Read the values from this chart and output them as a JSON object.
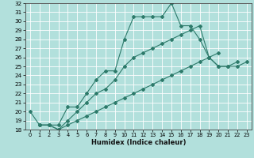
{
  "xlabel": "Humidex (Indice chaleur)",
  "background_color": "#b2e0dc",
  "grid_color": "#ffffff",
  "line_color": "#2d7a6a",
  "xlim": [
    -0.5,
    23.5
  ],
  "ylim": [
    18,
    32
  ],
  "xticks": [
    0,
    1,
    2,
    3,
    4,
    5,
    6,
    7,
    8,
    9,
    10,
    11,
    12,
    13,
    14,
    15,
    16,
    17,
    18,
    19,
    20,
    21,
    22,
    23
  ],
  "yticks": [
    18,
    19,
    20,
    21,
    22,
    23,
    24,
    25,
    26,
    27,
    28,
    29,
    30,
    31,
    32
  ],
  "series": [
    {
      "x": [
        0,
        1,
        2,
        3,
        4,
        5,
        6,
        7,
        8,
        9,
        10,
        11,
        12,
        13,
        14,
        15,
        16,
        17,
        18,
        19,
        20,
        21,
        22
      ],
      "y": [
        20,
        18.5,
        18.5,
        18.5,
        20.5,
        20.5,
        22,
        23.5,
        24.5,
        24.5,
        28,
        30.5,
        30.5,
        30.5,
        30.5,
        32,
        29.5,
        29.5,
        28,
        26,
        25,
        25,
        25.5
      ]
    },
    {
      "x": [
        1,
        2,
        3,
        4,
        5,
        6,
        7,
        8,
        9,
        10,
        11,
        12,
        13,
        14,
        15,
        16,
        17,
        18,
        19,
        20,
        21,
        22,
        23
      ],
      "y": [
        18.5,
        18.5,
        18,
        19,
        20,
        21,
        22,
        22.5,
        23.5,
        25,
        26,
        26.5,
        27,
        27.5,
        28,
        28.5,
        29,
        29.5,
        26,
        25,
        25,
        25,
        25.5
      ]
    },
    {
      "x": [
        1,
        2,
        3,
        4,
        5,
        6,
        7,
        8,
        9,
        10,
        11,
        12,
        13,
        14,
        15,
        16,
        17,
        18,
        19,
        20
      ],
      "y": [
        18.5,
        18.5,
        18,
        18.5,
        19,
        19.5,
        20,
        20.5,
        21,
        21.5,
        22,
        22.5,
        23,
        23.5,
        24,
        24.5,
        25,
        25.5,
        26,
        26.5
      ]
    }
  ]
}
